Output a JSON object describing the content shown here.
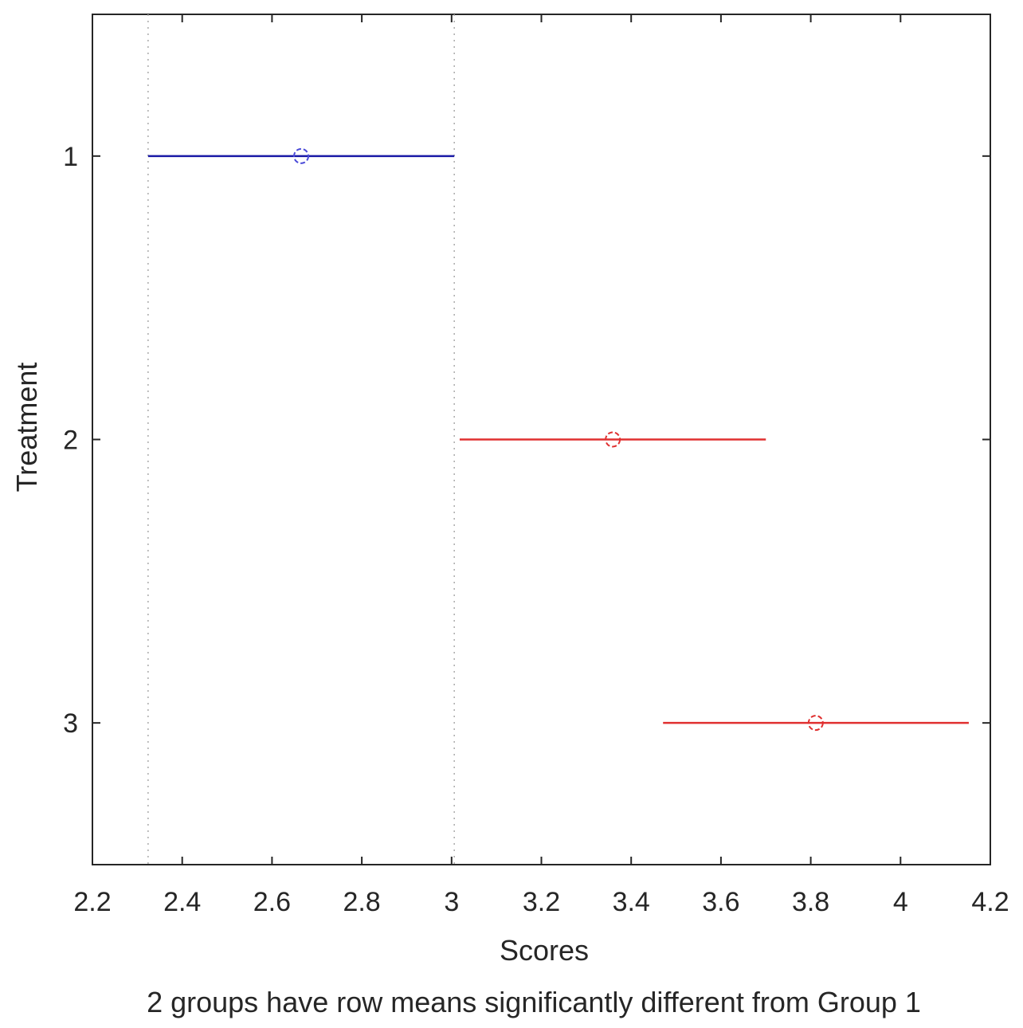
{
  "chart_data": {
    "type": "interval",
    "xlabel": "Scores",
    "ylabel": "Treatment",
    "caption": "2 groups have row means significantly different from Group 1",
    "xlim": [
      2.2,
      4.2
    ],
    "ylim": [
      0.5,
      3.5
    ],
    "y_reversed": true,
    "x_ticks": [
      "2.2",
      "2.4",
      "2.6",
      "2.8",
      "3",
      "3.2",
      "3.4",
      "3.6",
      "3.8",
      "4",
      "4.2"
    ],
    "y_ticks": [
      "1",
      "2",
      "3"
    ],
    "grid": false,
    "reference_lines": [
      2.324,
      3.006
    ],
    "series": [
      {
        "group": 1,
        "mean": 2.665,
        "lower": 2.324,
        "upper": 3.006,
        "color": "#1a1aa6",
        "marker_color": "#4b4bd8"
      },
      {
        "group": 2,
        "mean": 3.359,
        "lower": 3.018,
        "upper": 3.7,
        "color": "#e03030",
        "marker_color": "#e03030"
      },
      {
        "group": 3,
        "mean": 3.811,
        "lower": 3.471,
        "upper": 4.152,
        "color": "#e03030",
        "marker_color": "#e03030"
      }
    ]
  }
}
